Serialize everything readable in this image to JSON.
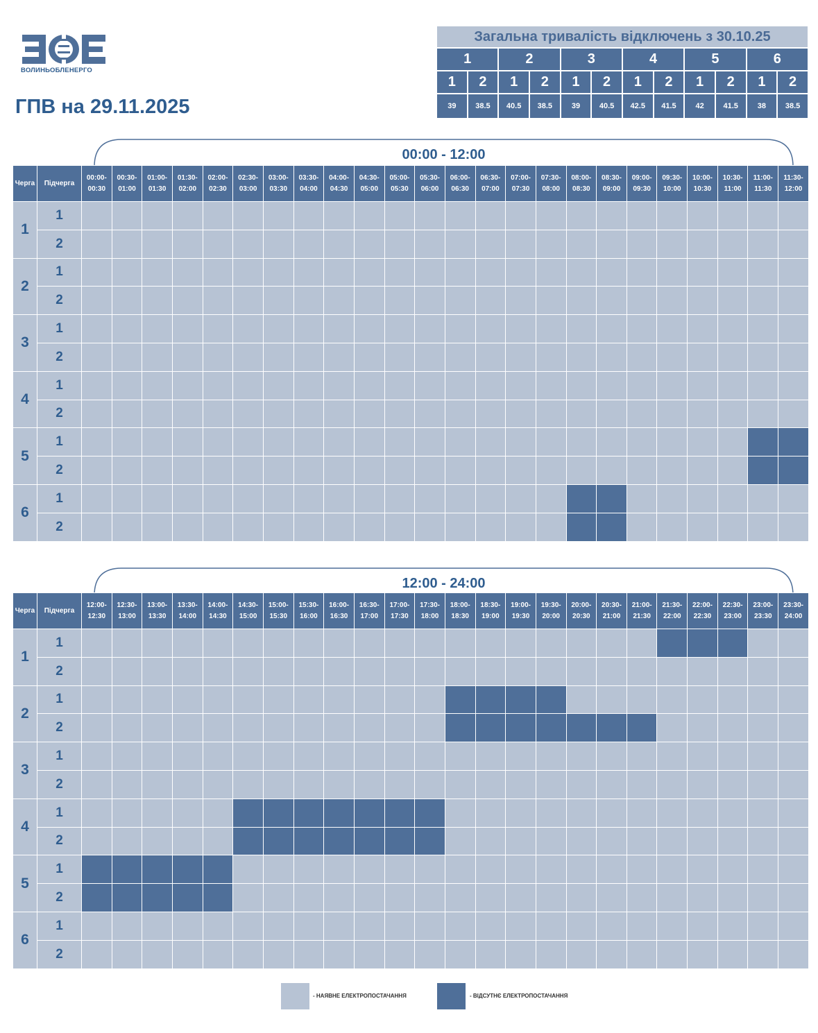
{
  "brand": {
    "logo_text": "ЗОЕ",
    "name": "ВОЛИНЬОБЛЕНЕРГО"
  },
  "title": "ГПВ на 29.11.2025",
  "summary": {
    "title": "Загальна тривалість відключень з 30.10.25",
    "queues": [
      "1",
      "2",
      "3",
      "4",
      "5",
      "6"
    ],
    "subqueues": [
      "1",
      "2",
      "1",
      "2",
      "1",
      "2",
      "1",
      "2",
      "1",
      "2",
      "1",
      "2"
    ],
    "values": [
      "39",
      "38.5",
      "40.5",
      "38.5",
      "39",
      "40.5",
      "42.5",
      "41.5",
      "42",
      "41.5",
      "38",
      "38.5"
    ]
  },
  "headers": {
    "queue": "Черга",
    "subqueue": "Підчерга"
  },
  "sections": [
    {
      "label": "00:00 - 12:00",
      "slots": [
        [
          "00:00-",
          "00:30"
        ],
        [
          "00:30-",
          "01:00"
        ],
        [
          "01:00-",
          "01:30"
        ],
        [
          "01:30-",
          "02:00"
        ],
        [
          "02:00-",
          "02:30"
        ],
        [
          "02:30-",
          "03:00"
        ],
        [
          "03:00-",
          "03:30"
        ],
        [
          "03:30-",
          "04:00"
        ],
        [
          "04:00-",
          "04:30"
        ],
        [
          "04:30-",
          "05:00"
        ],
        [
          "05:00-",
          "05:30"
        ],
        [
          "05:30-",
          "06:00"
        ],
        [
          "06:00-",
          "06:30"
        ],
        [
          "06:30-",
          "07:00"
        ],
        [
          "07:00-",
          "07:30"
        ],
        [
          "07:30-",
          "08:00"
        ],
        [
          "08:00-",
          "08:30"
        ],
        [
          "08:30-",
          "09:00"
        ],
        [
          "09:00-",
          "09:30"
        ],
        [
          "09:30-",
          "10:00"
        ],
        [
          "10:00-",
          "10:30"
        ],
        [
          "10:30-",
          "11:00"
        ],
        [
          "11:00-",
          "11:30"
        ],
        [
          "11:30-",
          "12:00"
        ]
      ],
      "rows": [
        {
          "queue": "1",
          "sub": "1",
          "off": []
        },
        {
          "queue": "1",
          "sub": "2",
          "off": []
        },
        {
          "queue": "2",
          "sub": "1",
          "off": []
        },
        {
          "queue": "2",
          "sub": "2",
          "off": []
        },
        {
          "queue": "3",
          "sub": "1",
          "off": []
        },
        {
          "queue": "3",
          "sub": "2",
          "off": []
        },
        {
          "queue": "4",
          "sub": "1",
          "off": []
        },
        {
          "queue": "4",
          "sub": "2",
          "off": []
        },
        {
          "queue": "5",
          "sub": "1",
          "off": [
            22,
            23
          ]
        },
        {
          "queue": "5",
          "sub": "2",
          "off": [
            22,
            23
          ]
        },
        {
          "queue": "6",
          "sub": "1",
          "off": [
            16,
            17
          ]
        },
        {
          "queue": "6",
          "sub": "2",
          "off": [
            16,
            17
          ]
        }
      ]
    },
    {
      "label": "12:00 - 24:00",
      "slots": [
        [
          "12:00-",
          "12:30"
        ],
        [
          "12:30-",
          "13:00"
        ],
        [
          "13:00-",
          "13:30"
        ],
        [
          "13:30-",
          "14:00"
        ],
        [
          "14:00-",
          "14:30"
        ],
        [
          "14:30-",
          "15:00"
        ],
        [
          "15:00-",
          "15:30"
        ],
        [
          "15:30-",
          "16:00"
        ],
        [
          "16:00-",
          "16:30"
        ],
        [
          "16:30-",
          "17:00"
        ],
        [
          "17:00-",
          "17:30"
        ],
        [
          "17:30-",
          "18:00"
        ],
        [
          "18:00-",
          "18:30"
        ],
        [
          "18:30-",
          "19:00"
        ],
        [
          "19:00-",
          "19:30"
        ],
        [
          "19:30-",
          "20:00"
        ],
        [
          "20:00-",
          "20:30"
        ],
        [
          "20:30-",
          "21:00"
        ],
        [
          "21:00-",
          "21:30"
        ],
        [
          "21:30-",
          "22:00"
        ],
        [
          "22:00-",
          "22:30"
        ],
        [
          "22:30-",
          "23:00"
        ],
        [
          "23:00-",
          "23:30"
        ],
        [
          "23:30-",
          "24:00"
        ]
      ],
      "rows": [
        {
          "queue": "1",
          "sub": "1",
          "off": [
            19,
            20,
            21
          ]
        },
        {
          "queue": "1",
          "sub": "2",
          "off": []
        },
        {
          "queue": "2",
          "sub": "1",
          "off": [
            12,
            13,
            14,
            15
          ]
        },
        {
          "queue": "2",
          "sub": "2",
          "off": [
            12,
            13,
            14,
            15,
            16,
            17,
            18
          ]
        },
        {
          "queue": "3",
          "sub": "1",
          "off": []
        },
        {
          "queue": "3",
          "sub": "2",
          "off": []
        },
        {
          "queue": "4",
          "sub": "1",
          "off": [
            5,
            6,
            7,
            8,
            9,
            10,
            11
          ]
        },
        {
          "queue": "4",
          "sub": "2",
          "off": [
            5,
            6,
            7,
            8,
            9,
            10,
            11
          ]
        },
        {
          "queue": "5",
          "sub": "1",
          "off": [
            0,
            1,
            2,
            3,
            4
          ]
        },
        {
          "queue": "5",
          "sub": "2",
          "off": [
            0,
            1,
            2,
            3,
            4
          ]
        },
        {
          "queue": "6",
          "sub": "1",
          "off": []
        },
        {
          "queue": "6",
          "sub": "2",
          "off": []
        }
      ]
    }
  ],
  "legend": {
    "available": "- НАЯВНЕ ЕЛЕКТРОПОСТАЧАННЯ",
    "missing": "- ВІДСУТНЄ ЕЛЕКТРОПОСТАЧАННЯ"
  },
  "colors": {
    "available": "#b7c3d4",
    "missing": "#4f6f99",
    "accent": "#2f5d8f"
  }
}
